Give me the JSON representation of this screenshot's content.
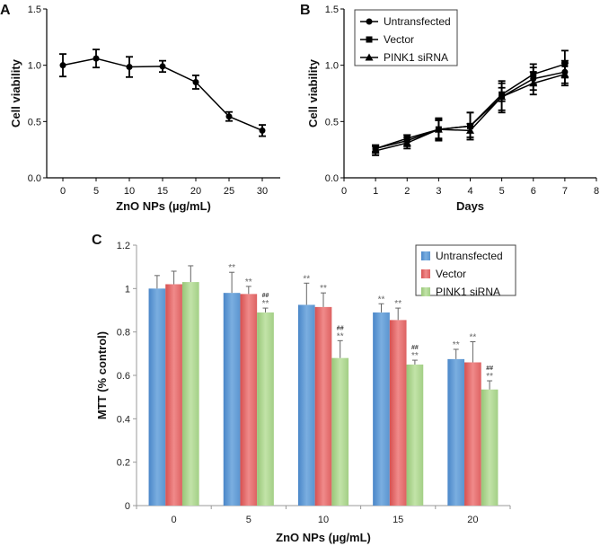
{
  "chart_data": [
    {
      "panel": "A",
      "type": "line",
      "xlabel": "ZnO NPs (µg/mL)",
      "ylabel": "Cell viability",
      "x": [
        0,
        5,
        10,
        15,
        20,
        25,
        30
      ],
      "xticks": [
        "0",
        "5",
        "10",
        "15",
        "20",
        "25",
        "30"
      ],
      "yticks": [
        "0.0",
        "0.5",
        "1.0",
        "1.5"
      ],
      "ylim": [
        0,
        1.5
      ],
      "series": [
        {
          "values": [
            1.0,
            1.06,
            0.985,
            0.99,
            0.85,
            0.545,
            0.42
          ],
          "errors": [
            0.1,
            0.08,
            0.09,
            0.05,
            0.06,
            0.04,
            0.05
          ],
          "marker": "circle"
        }
      ]
    },
    {
      "panel": "B",
      "type": "line",
      "xlabel": "Days",
      "ylabel": "Cell viability",
      "x": [
        1,
        2,
        3,
        4,
        5,
        6,
        7
      ],
      "xlim": [
        0,
        8
      ],
      "xticks": [
        "0",
        "1",
        "2",
        "3",
        "4",
        "5",
        "6",
        "7",
        "8"
      ],
      "yticks": [
        "0.0",
        "0.5",
        "1.0",
        "1.5"
      ],
      "ylim": [
        0,
        1.5
      ],
      "legend": "top-left",
      "series": [
        {
          "name": "Untransfected",
          "marker": "circle",
          "values": [
            0.26,
            0.33,
            0.43,
            0.46,
            0.72,
            0.88,
            0.94
          ],
          "errors": [
            0.03,
            0.05,
            0.1,
            0.12,
            0.12,
            0.1,
            0.1
          ]
        },
        {
          "name": "Vector",
          "marker": "square",
          "values": [
            0.26,
            0.35,
            0.43,
            0.46,
            0.74,
            0.92,
            1.01
          ],
          "errors": [
            0.03,
            0.03,
            0.09,
            0.12,
            0.06,
            0.09,
            0.12
          ]
        },
        {
          "name": "PINK1 siRNA",
          "marker": "triangle",
          "values": [
            0.24,
            0.31,
            0.43,
            0.42,
            0.72,
            0.84,
            0.92
          ],
          "errors": [
            0.04,
            0.05,
            0.08,
            0.06,
            0.14,
            0.1,
            0.1
          ]
        }
      ]
    },
    {
      "panel": "C",
      "type": "bar",
      "xlabel": "ZnO NPs (µg/mL)",
      "ylabel": "MTT (% control)",
      "categories": [
        "0",
        "5",
        "10",
        "15",
        "20"
      ],
      "yticks": [
        "0",
        "0.2",
        "0.4",
        "0.6",
        "0.8",
        "1",
        "1.2"
      ],
      "ylim": [
        0,
        1.2
      ],
      "legend": "top-right",
      "series": [
        {
          "name": "Untransfected",
          "color": "#5b9bd5",
          "values": [
            1.0,
            0.98,
            0.925,
            0.89,
            0.675
          ],
          "errors": [
            0.06,
            0.095,
            0.1,
            0.04,
            0.045
          ],
          "labels": [
            "",
            "**",
            "**",
            "**",
            "**"
          ]
        },
        {
          "name": "Vector",
          "color": "#e06666",
          "values": [
            1.02,
            0.975,
            0.915,
            0.855,
            0.66
          ],
          "errors": [
            0.06,
            0.035,
            0.065,
            0.055,
            0.095
          ],
          "labels": [
            "",
            "**",
            "**",
            "**",
            "**"
          ]
        },
        {
          "name": "PINK1 siRNA",
          "color": "#a9d18e",
          "values": [
            1.03,
            0.89,
            0.68,
            0.65,
            0.535
          ],
          "errors": [
            0.075,
            0.02,
            0.08,
            0.02,
            0.04
          ],
          "labels": [
            "",
            "**",
            "**",
            "**",
            "**"
          ],
          "labels2": [
            "",
            "##",
            "##",
            "##",
            "##"
          ]
        }
      ]
    }
  ]
}
